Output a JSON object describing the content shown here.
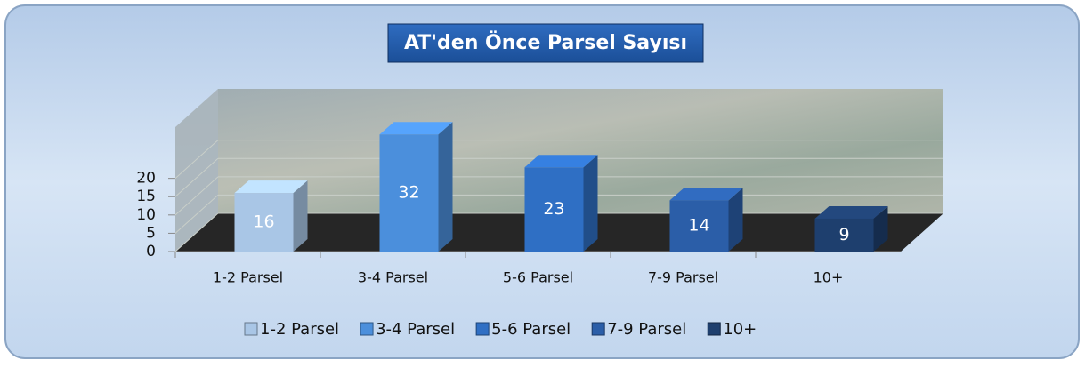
{
  "chart_data": {
    "type": "bar3d",
    "title": "AT'den Önce Parsel Sayısı",
    "categories": [
      "1-2 Parsel",
      "3-4 Parsel",
      "5-6 Parsel",
      "7-9 Parsel",
      "10+"
    ],
    "values": [
      16,
      32,
      23,
      14,
      9
    ],
    "colors": [
      "#a9c6e6",
      "#4b8fdc",
      "#2f6fc4",
      "#2b5ea8",
      "#1e3f6e"
    ],
    "ylim": [
      0,
      34
    ],
    "yticks": [
      0,
      5,
      10,
      15,
      20
    ],
    "grid": true,
    "legend": "bottom"
  }
}
